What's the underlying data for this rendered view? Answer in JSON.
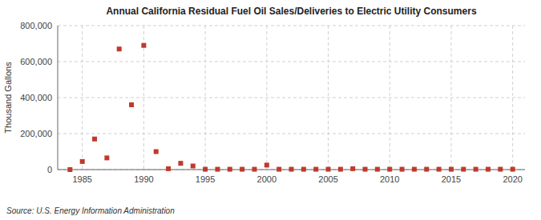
{
  "chart_data": {
    "type": "scatter",
    "title": "Annual California Residual Fuel Oil Sales/Deliveries to Electric Utility Consumers",
    "ylabel": "Thousand Gallons",
    "annotation": "Source: U.S. Energy Information Administration",
    "color": "#c0392b",
    "marker": "square",
    "grid": true,
    "xlim": [
      1983,
      2021
    ],
    "ylim": [
      0,
      800000
    ],
    "xticks": [
      1985,
      1990,
      1995,
      2000,
      2005,
      2010,
      2015,
      2020
    ],
    "yticks": [
      0,
      {
        "value": 200000,
        "label": "200,000"
      },
      {
        "value": 400000,
        "label": "400,000"
      },
      {
        "value": 600000,
        "label": "600,000"
      },
      {
        "value": 800000,
        "label": "800,000"
      }
    ],
    "x": [
      1984,
      1985,
      1986,
      1987,
      1988,
      1989,
      1990,
      1991,
      1992,
      1993,
      1994,
      1995,
      1996,
      1997,
      1998,
      1999,
      2000,
      2001,
      2002,
      2003,
      2004,
      2005,
      2006,
      2007,
      2008,
      2009,
      2010,
      2011,
      2012,
      2013,
      2014,
      2015,
      2016,
      2017,
      2018,
      2019,
      2020
    ],
    "values": [
      0,
      45000,
      170000,
      65000,
      670000,
      360000,
      690000,
      100000,
      5000,
      35000,
      20000,
      2000,
      2000,
      2000,
      2000,
      2000,
      25000,
      2000,
      2000,
      2000,
      2000,
      2000,
      2000,
      5000,
      2000,
      2000,
      2000,
      2000,
      2000,
      2000,
      2000,
      2000,
      2000,
      2000,
      2000,
      2000,
      2000
    ]
  }
}
